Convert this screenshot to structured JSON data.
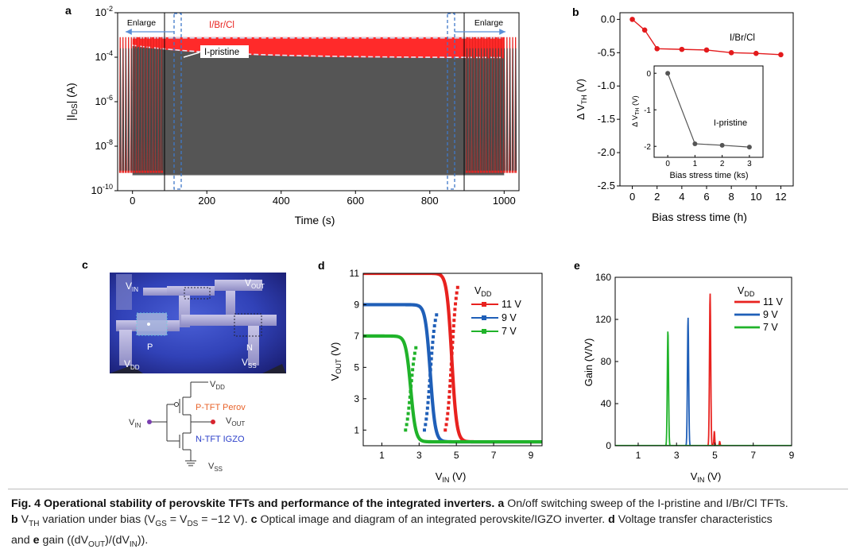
{
  "panels": {
    "a": {
      "letter": "a",
      "enlarge_left": "Enlarge",
      "enlarge_right": "Enlarge",
      "legend_ibrcl": "I/Br/Cl",
      "legend_ipristine": "I-pristine",
      "colors": {
        "ibrcl": "#ff2a2a",
        "ipristine": "#555555",
        "enlarge_arrow": "#5b8fd6"
      }
    },
    "b": {
      "letter": "b",
      "series_label": "I/Br/Cl",
      "inset_series_label": "I-pristine",
      "inset_xlabel": "Bias stress time (ks)"
    },
    "c": {
      "letter": "c",
      "photo_labels": {
        "vin": "V",
        "vin_sub": "IN",
        "vout": "V",
        "vout_sub": "OUT",
        "vdd": "V",
        "vdd_sub": "DD",
        "vss": "V",
        "vss_sub": "SS",
        "p": "P",
        "n": "N"
      },
      "circuit": {
        "vdd": "V",
        "vdd_sub": "DD",
        "vin": "V",
        "vin_sub": "IN",
        "vout": "V",
        "vout_sub": "OUT",
        "vss": "V",
        "vss_sub": "SS",
        "ptft": "P-TFT Perov",
        "ntft": "N-TFT IGZO",
        "colors": {
          "ptft": "#e8632a",
          "ntft": "#2b3fc9",
          "vin_dot": "#7a3fb0",
          "vout_dot": "#d8242e"
        }
      }
    },
    "d": {
      "letter": "d",
      "legend_title": "V",
      "legend_title_sub": "DD",
      "xlabel": "V",
      "xlabel_sub": "IN",
      "xlabel_unit": " (V)",
      "ylabel": "V",
      "ylabel_sub": "OUT",
      "ylabel_unit": " (V)"
    },
    "e": {
      "letter": "e",
      "legend_title": "V",
      "legend_title_sub": "DD",
      "xlabel": "V",
      "xlabel_sub": "IN",
      "xlabel_unit": " (V)",
      "ylabel": "Gain (V/V)"
    }
  },
  "chart_data": [
    {
      "panel": "a",
      "type": "line",
      "xlabel": "Time (s)",
      "ylabel": "|I_DS| (A)",
      "xlim": [
        -40,
        1040
      ],
      "ylim_log10": [
        -10,
        -2
      ],
      "x_ticks": [
        0,
        200,
        400,
        600,
        800,
        1000
      ],
      "y_ticks": [
        "10^-2",
        "10^-4",
        "10^-6",
        "10^-8",
        "10^-10"
      ],
      "series": [
        {
          "name": "I/Br/Cl",
          "color": "#ff2a2a",
          "on_current_log10": [
            -3.1,
            -3.1
          ],
          "off_current_log10": [
            -9.2,
            -9.2
          ]
        },
        {
          "name": "I-pristine",
          "color": "#555555",
          "on_current_log10": [
            -3.5,
            -4.05
          ],
          "off_current_log10": [
            -9.1,
            -9.1
          ],
          "x": [
            0,
            1000
          ]
        }
      ]
    },
    {
      "panel": "b",
      "type": "line",
      "xlabel": "Bias stress time (h)",
      "ylabel": "Δ V_TH (V)",
      "xlim": [
        -1,
        13
      ],
      "ylim": [
        -2.5,
        0.1
      ],
      "x_ticks": [
        0,
        2,
        4,
        6,
        8,
        10,
        12
      ],
      "y_ticks": [
        0.0,
        -0.5,
        -1.0,
        -1.5,
        -2.0,
        -2.5
      ],
      "series": [
        {
          "name": "I/Br/Cl",
          "color": "#e31a1c",
          "x": [
            0,
            1,
            2,
            4,
            6,
            8,
            10,
            12
          ],
          "y": [
            0.0,
            -0.16,
            -0.44,
            -0.45,
            -0.46,
            -0.5,
            -0.51,
            -0.53
          ]
        }
      ],
      "inset": {
        "xlabel": "Bias stress time (ks)",
        "ylabel": "Δ V_TH (V)",
        "xlim": [
          -0.5,
          3.5
        ],
        "ylim": [
          -2.3,
          0.2
        ],
        "x_ticks": [
          0,
          1,
          2,
          3
        ],
        "y_ticks": [
          0,
          -1,
          -2
        ],
        "series": [
          {
            "name": "I-pristine",
            "color": "#555555",
            "x": [
              0,
              1,
              2,
              3
            ],
            "y": [
              0.0,
              -1.93,
              -1.97,
              -2.02
            ]
          }
        ]
      }
    },
    {
      "panel": "d",
      "type": "line",
      "xlim": [
        0,
        9.6
      ],
      "ylim": [
        0,
        11
      ],
      "x_ticks": [
        1,
        3,
        5,
        7,
        9
      ],
      "y_ticks": [
        1,
        3,
        5,
        7,
        9,
        11
      ],
      "series": [
        {
          "name": "11 V",
          "vdd": 11,
          "vm": 4.75,
          "color": "#e8221f"
        },
        {
          "name": "9 V",
          "vdd": 9,
          "vm": 3.6,
          "color": "#1f5fb8"
        },
        {
          "name": "7 V",
          "vdd": 7,
          "vm": 2.55,
          "color": "#20b32a"
        }
      ]
    },
    {
      "panel": "e",
      "type": "line",
      "xlim": [
        -0.2,
        9.0
      ],
      "ylim": [
        0,
        160
      ],
      "x_ticks": [
        1,
        3,
        5,
        7,
        9
      ],
      "y_ticks": [
        0,
        40,
        80,
        120,
        160
      ],
      "series": [
        {
          "name": "11 V",
          "peak_x": 4.75,
          "peak_gain": 145,
          "color": "#e8221f"
        },
        {
          "name": "9 V",
          "peak_x": 3.6,
          "peak_gain": 122,
          "color": "#1f5fb8"
        },
        {
          "name": "7 V",
          "peak_x": 2.55,
          "peak_gain": 110,
          "color": "#20b32a"
        }
      ]
    }
  ],
  "caption": {
    "figure_label": "Fig. 4",
    "title": "Operational stability of perovskite TFTs and performance of the integrated inverters.",
    "a_label": "a",
    "a_text": "On/off switching sweep of the I-pristine and I/Br/Cl TFTs.",
    "b_label": "b",
    "b_text_1": "V",
    "b_text_1_sub": "TH",
    "b_text_2": " variation under bias (V",
    "b_text_2_sub": "GS",
    "b_text_3": " = V",
    "b_text_3_sub": "DS",
    "b_text_4": " = −12 V).",
    "c_label": "c",
    "c_text": "Optical image and diagram of an integrated perovskite/IGZO inverter.",
    "d_label": "d",
    "d_text": "Voltage transfer characteristics",
    "and_text": "and",
    "e_label": "e",
    "e_text_1": "gain ((dV",
    "e_text_1_sub": "OUT",
    "e_text_2": ")/(dV",
    "e_text_2_sub": "IN",
    "e_text_3": "))."
  }
}
